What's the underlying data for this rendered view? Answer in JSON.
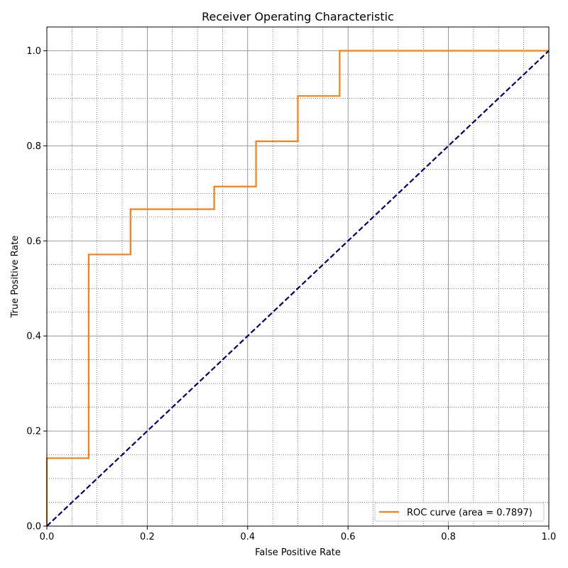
{
  "chart_data": {
    "type": "line",
    "title": "Receiver Operating Characteristic",
    "xlabel": "False Positive Rate",
    "ylabel": "True Positive Rate",
    "xlim": [
      0.0,
      1.0
    ],
    "ylim": [
      0.0,
      1.05
    ],
    "x_major_ticks": [
      0.0,
      0.2,
      0.4,
      0.6,
      0.8,
      1.0
    ],
    "y_major_ticks": [
      0.0,
      0.2,
      0.4,
      0.6,
      0.8,
      1.0
    ],
    "x_tick_labels": [
      "0.0",
      "0.2",
      "0.4",
      "0.6",
      "0.8",
      "1.0"
    ],
    "y_tick_labels": [
      "0.0",
      "0.2",
      "0.4",
      "0.6",
      "0.8",
      "1.0"
    ],
    "x_minor_step": 0.05,
    "y_minor_step": 0.05,
    "grid": true,
    "legend_position": "lower-right",
    "series": [
      {
        "name": "ROC curve (area = 0.7897)",
        "color": "#ff7f0e",
        "style": "solid",
        "x": [
          0.0,
          0.0,
          0.0833,
          0.0833,
          0.1667,
          0.1667,
          0.3333,
          0.3333,
          0.4167,
          0.4167,
          0.5,
          0.5,
          0.5833,
          0.5833,
          1.0
        ],
        "y": [
          0.0,
          0.1429,
          0.1429,
          0.5714,
          0.5714,
          0.6667,
          0.6667,
          0.7143,
          0.7143,
          0.8095,
          0.8095,
          0.9048,
          0.9048,
          1.0,
          1.0
        ]
      },
      {
        "color": "#000080",
        "style": "dashed",
        "x": [
          0.0,
          1.0
        ],
        "y": [
          0.0,
          1.0
        ]
      }
    ]
  }
}
